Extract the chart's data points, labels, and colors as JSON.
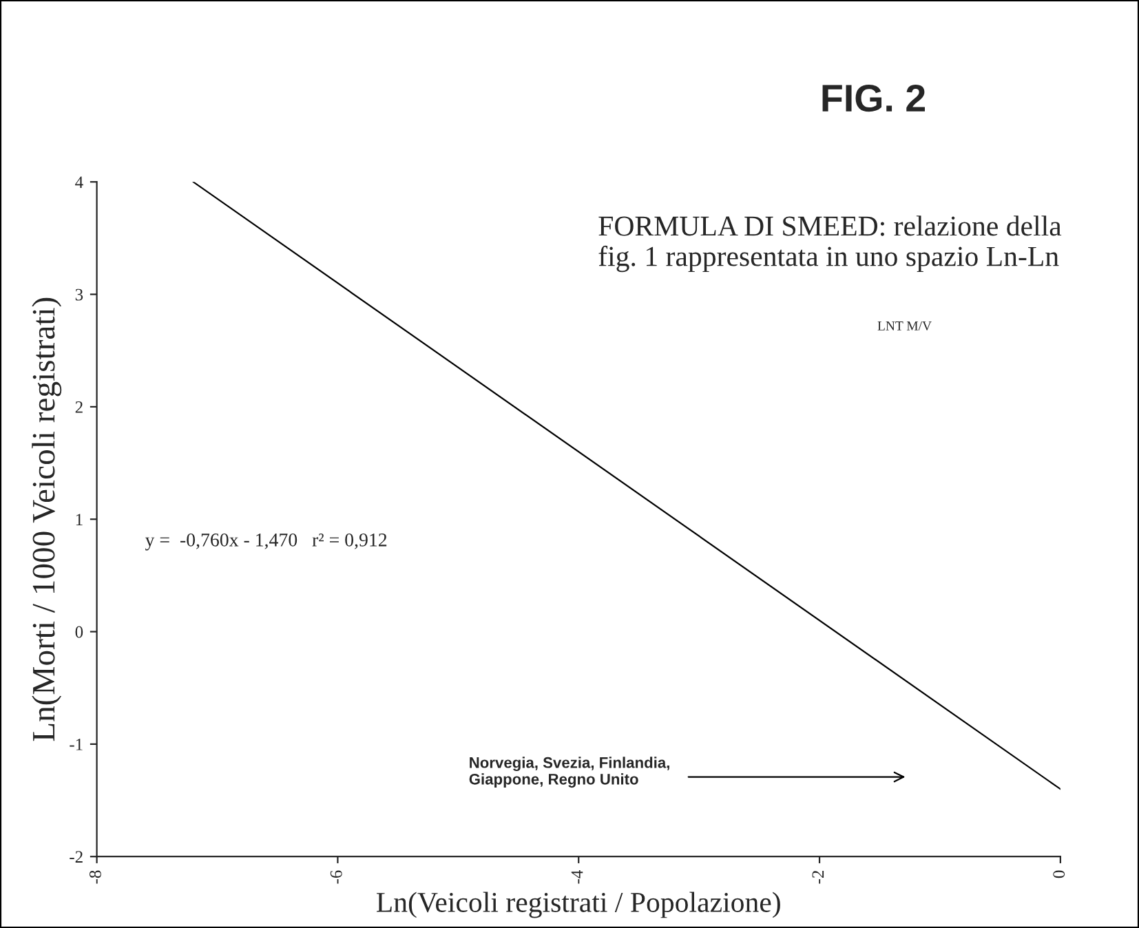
{
  "chart_data": {
    "type": "line",
    "title": "FIG. 2",
    "subtitle": "FORMULA DI SMEED: relazione della\nfig. 1 rappresentata in uno spazio Ln-Ln",
    "xlabel": "Ln(Veicoli registrati / Popolazione)",
    "ylabel": "Ln(Morti / 1000 Veicoli registrati)",
    "series": [
      {
        "x": [
          -7.2,
          0
        ],
        "values": [
          4.0,
          -1.4
        ],
        "color": "#000000"
      }
    ],
    "xlim": [
      -8,
      0
    ],
    "xticks": [
      -8,
      -6,
      -4,
      -2,
      0
    ],
    "ylim": [
      -2,
      4
    ],
    "yticks": [
      -2,
      -1,
      0,
      1,
      2,
      3,
      4
    ],
    "grid": false,
    "legend": false,
    "marker": "none",
    "line_style": "solid",
    "annotations": [
      "y =  -0,760x - 1,470   r² = 0,912",
      "LNT M/V",
      "Norvegia, Svezia, Finlandia,\nGiappone, Regno Unito"
    ]
  }
}
